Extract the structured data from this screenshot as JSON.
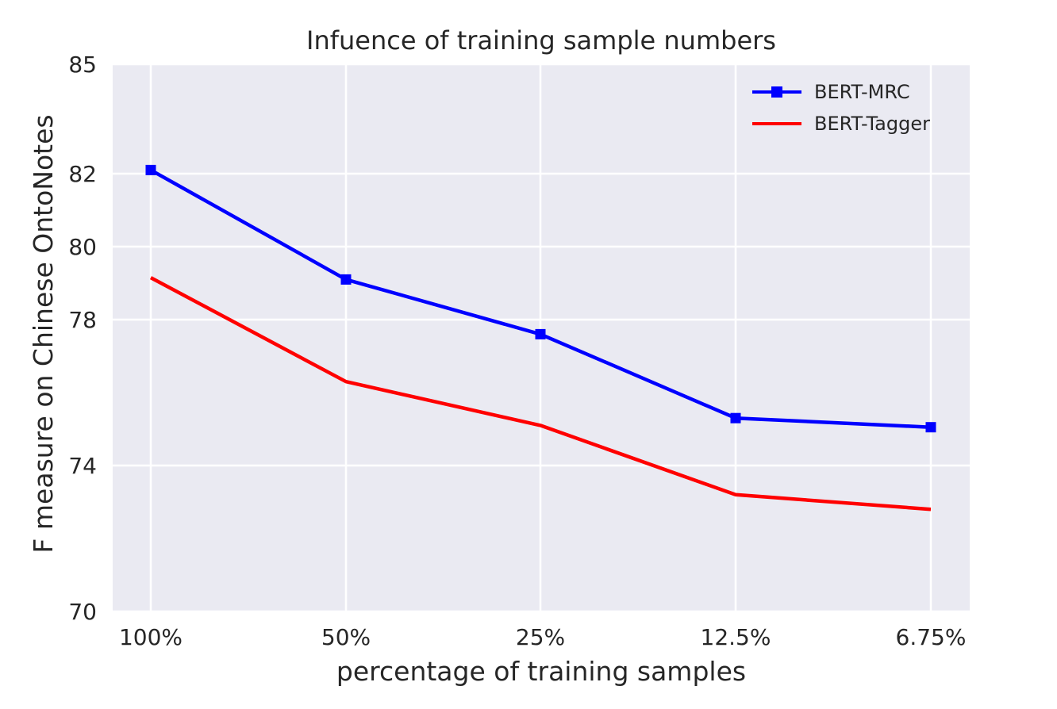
{
  "chart_data": {
    "type": "line",
    "title": "Infuence of training sample numbers",
    "xlabel": "percentage of training samples",
    "ylabel": "F measure on Chinese OntoNotes",
    "categories": [
      "100%",
      "50%",
      "25%",
      "12.5%",
      "6.75%"
    ],
    "yticks": [
      70,
      74,
      78,
      80,
      82,
      85
    ],
    "ylim": [
      70,
      85
    ],
    "grid": true,
    "legend_position": "top-right",
    "series": [
      {
        "name": "BERT-MRC",
        "color": "#0000ff",
        "marker": "square",
        "values": [
          82.1,
          79.1,
          77.6,
          75.3,
          75.05
        ]
      },
      {
        "name": "BERT-Tagger",
        "color": "#ff0000",
        "marker": "none",
        "values": [
          79.15,
          76.3,
          75.1,
          73.2,
          72.8
        ]
      }
    ]
  }
}
